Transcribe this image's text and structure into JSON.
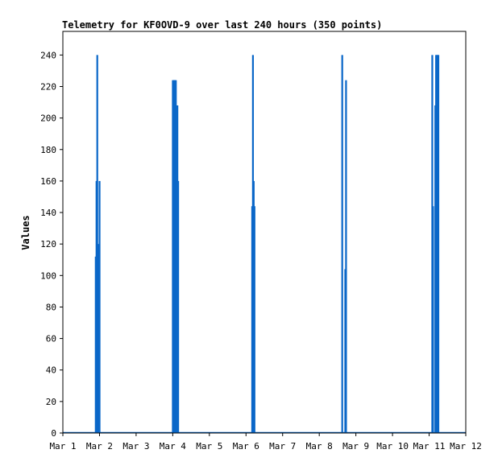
{
  "chart_data": {
    "type": "bar",
    "title": "Telemetry for KF0OVD-9 over last 240 hours (350 points)",
    "xlabel": "",
    "ylabel": "Values",
    "xlim": [
      "Mar 1",
      "Mar 12"
    ],
    "ylim": [
      0,
      255
    ],
    "grid": false,
    "x_ticks": [
      "Mar 1",
      "Mar 2",
      "Mar 3",
      "Mar 4",
      "Mar 5",
      "Mar 6",
      "Mar 7",
      "Mar 8",
      "Mar 9",
      "Mar 10",
      "Mar 11",
      "Mar 12"
    ],
    "y_ticks": [
      "0",
      "20",
      "40",
      "60",
      "80",
      "100",
      "120",
      "140",
      "160",
      "180",
      "200",
      "220",
      "240"
    ],
    "series": [
      {
        "color": "#0a67c8",
        "points": [
          {
            "x": "Mar 1 21:30",
            "y": 112
          },
          {
            "x": "Mar 1 22:00",
            "y": 160
          },
          {
            "x": "Mar 1 22:30",
            "y": 240
          },
          {
            "x": "Mar 1 23:00",
            "y": 120
          },
          {
            "x": "Mar 1 23:30",
            "y": 80
          },
          {
            "x": "Mar 2 00:00",
            "y": 160
          },
          {
            "x": "Mar 4 00:00",
            "y": 224
          },
          {
            "x": "Mar 4 00:30",
            "y": 224
          },
          {
            "x": "Mar 4 01:00",
            "y": 224
          },
          {
            "x": "Mar 4 01:30",
            "y": 224
          },
          {
            "x": "Mar 4 02:00",
            "y": 224
          },
          {
            "x": "Mar 4 03:00",
            "y": 208
          },
          {
            "x": "Mar 4 03:30",
            "y": 160
          },
          {
            "x": "Mar 6 04:00",
            "y": 144
          },
          {
            "x": "Mar 6 04:30",
            "y": 240
          },
          {
            "x": "Mar 6 05:00",
            "y": 160
          },
          {
            "x": "Mar 6 05:30",
            "y": 144
          },
          {
            "x": "Mar 8 15:00",
            "y": 240
          },
          {
            "x": "Mar 8 17:00",
            "y": 104
          },
          {
            "x": "Mar 8 17:30",
            "y": 224
          },
          {
            "x": "Mar 11 02:00",
            "y": 240
          },
          {
            "x": "Mar 11 02:30",
            "y": 144
          },
          {
            "x": "Mar 11 04:00",
            "y": 208
          },
          {
            "x": "Mar 11 04:30",
            "y": 240
          },
          {
            "x": "Mar 11 05:00",
            "y": 240
          },
          {
            "x": "Mar 11 05:30",
            "y": 240
          },
          {
            "x": "Mar 11 06:00",
            "y": 240
          }
        ]
      }
    ]
  }
}
